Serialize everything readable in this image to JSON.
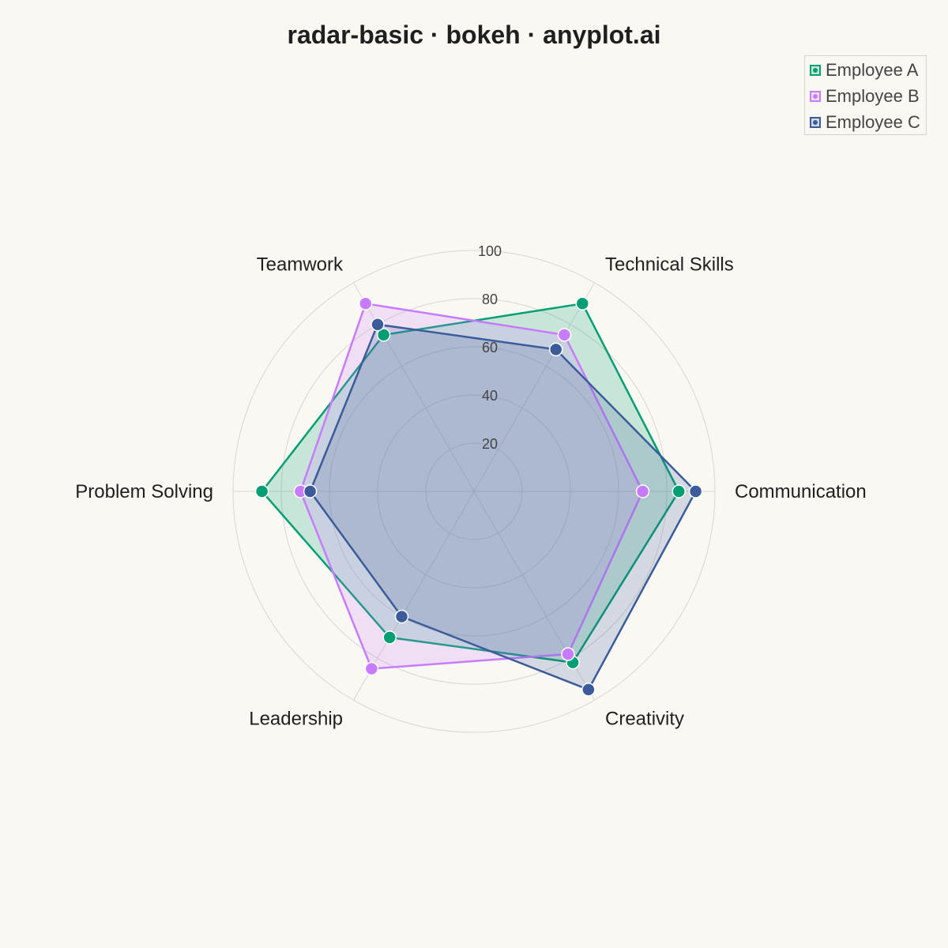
{
  "chart_data": {
    "type": "radar",
    "title": "radar-basic · bokeh · anyplot.ai",
    "categories": [
      "Communication",
      "Technical Skills",
      "Teamwork",
      "Problem Solving",
      "Leadership",
      "Creativity"
    ],
    "radial_ticks": [
      "20",
      "40",
      "60",
      "80",
      "100"
    ],
    "rlim": [
      0,
      100
    ],
    "grid": true,
    "legend_position": "top-right",
    "series": [
      {
        "name": "Employee A",
        "color": "#009E73",
        "values": [
          85,
          90,
          75,
          88,
          70,
          82
        ]
      },
      {
        "name": "Employee B",
        "color": "#C77CFF",
        "values": [
          70,
          75,
          90,
          72,
          85,
          78
        ]
      },
      {
        "name": "Employee C",
        "color": "#3B5B9A",
        "values": [
          92,
          68,
          80,
          68,
          60,
          95
        ]
      }
    ]
  }
}
